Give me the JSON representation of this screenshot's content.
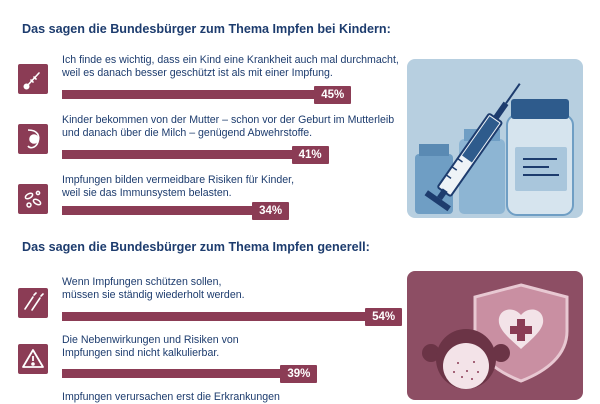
{
  "sections": [
    {
      "heading": "Das sagen die Bundesbürger zum Thema Impfen bei Kindern:",
      "items": [
        {
          "icon": "thermometer-icon",
          "line1": "Ich finde es wichtig, dass ein Kind eine Krankheit auch mal durchmacht,",
          "line2": "weil es danach besser geschützt ist als mit einer Impfung.",
          "value": 45,
          "label": "45%"
        },
        {
          "icon": "pregnancy-icon",
          "line1": "Kinder bekommen von der Mutter – schon vor der Geburt im Mutterleib",
          "line2": "und danach über die Milch – genügend Abwehrstoffe.",
          "value": 41,
          "label": "41%"
        },
        {
          "icon": "bacteria-icon",
          "line1": "Impfungen bilden vermeidbare Risiken für Kinder,",
          "line2": "weil sie das Immunsystem belasten.",
          "value": 34,
          "label": "34%"
        }
      ]
    },
    {
      "heading": "Das sagen die Bundesbürger zum Thema Impfen generell:",
      "items": [
        {
          "icon": "syringes-icon",
          "line1": "Wenn Impfungen schützen sollen,",
          "line2": "müssen sie ständig wiederholt werden.",
          "value": 54,
          "label": "54%"
        },
        {
          "icon": "warning-icon",
          "line1": "Die Nebenwirkungen und Risiken von",
          "line2": "Impfungen sind nicht kalkulierbar.",
          "value": 39,
          "label": "39%"
        },
        {
          "icon": "virus-icon",
          "line1": "Impfungen verursachen erst die Erkrankungen",
          "line2": "",
          "value": null,
          "label": ""
        }
      ]
    }
  ],
  "chart_data": [
    {
      "type": "bar",
      "title": "Das sagen die Bundesbürger zum Thema Impfen bei Kindern:",
      "unit": "%",
      "categories": [
        "Ich finde es wichtig, dass ein Kind eine Krankheit auch mal durchmacht, weil es danach besser geschützt ist als mit einer Impfung.",
        "Kinder bekommen von der Mutter – schon vor der Geburt im Mutterleib und danach über die Milch – genügend Abwehrstoffe.",
        "Impfungen bilden vermeidbare Risiken für Kinder, weil sie das Immunsystem belasten."
      ],
      "values": [
        45,
        41,
        34
      ]
    },
    {
      "type": "bar",
      "title": "Das sagen die Bundesbürger zum Thema Impfen generell:",
      "unit": "%",
      "categories": [
        "Wenn Impfungen schützen sollen, müssen sie ständig wiederholt werden.",
        "Die Nebenwirkungen und Risiken von Impfungen sind nicht kalkulierbar.",
        "Impfungen verursachen erst die Erkrankungen"
      ],
      "values": [
        54,
        39,
        null
      ]
    }
  ],
  "colors": {
    "bar": "#8b3c55",
    "text": "#1d3c6e",
    "illustration_top_bg": "#b7cfe0",
    "illustration_bottom_bg": "#8d4e64"
  }
}
